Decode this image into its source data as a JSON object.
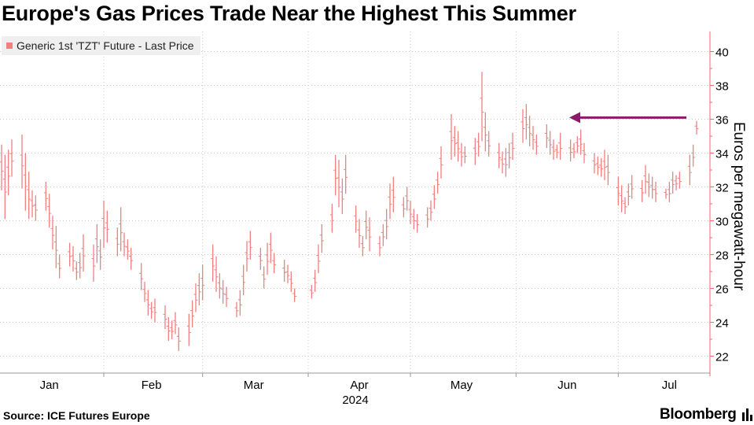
{
  "title": "Europe's Gas Prices Trade Near the Highest This Summer",
  "source": "Source: ICE Futures Europe",
  "brand": "Bloomberg",
  "colors": {
    "series": "#f08080",
    "arrow": "#8b1a6b",
    "grid": "#c8c8c8",
    "axis": "#ff6666"
  },
  "chart_data": {
    "type": "ohlc",
    "series_name": "Generic 1st 'TZT' Future - Last Price",
    "ylabel": "Euros per megawatt-hour",
    "ylim": [
      21,
      41
    ],
    "yticks": [
      22,
      24,
      26,
      28,
      30,
      32,
      34,
      36,
      38,
      40
    ],
    "month_labels": [
      "Jan",
      "Feb",
      "Mar",
      "Apr",
      "May",
      "Jun",
      "Jul"
    ],
    "year_label": "2024",
    "annotation": {
      "type": "arrow",
      "pointing": "left",
      "level": 36.1
    },
    "grid": true,
    "legend_position": "top-left",
    "bars": [
      {
        "date": "2024-01-02",
        "high": 34.5,
        "low": 31.8
      },
      {
        "date": "2024-01-03",
        "high": 33.9,
        "low": 30.1
      },
      {
        "date": "2024-01-04",
        "high": 34.2,
        "low": 31.5
      },
      {
        "date": "2024-01-05",
        "high": 34.8,
        "low": 32.6
      },
      {
        "date": "2024-01-08",
        "high": 35.1,
        "low": 31.9
      },
      {
        "date": "2024-01-09",
        "high": 34.0,
        "low": 30.6
      },
      {
        "date": "2024-01-10",
        "high": 32.9,
        "low": 30.1
      },
      {
        "date": "2024-01-11",
        "high": 31.8,
        "low": 30.2
      },
      {
        "date": "2024-01-12",
        "high": 31.5,
        "low": 30.0
      },
      {
        "date": "2024-01-15",
        "high": 32.3,
        "low": 30.6
      },
      {
        "date": "2024-01-16",
        "high": 31.6,
        "low": 29.6
      },
      {
        "date": "2024-01-17",
        "high": 30.3,
        "low": 28.3
      },
      {
        "date": "2024-01-18",
        "high": 29.7,
        "low": 27.2
      },
      {
        "date": "2024-01-19",
        "high": 28.0,
        "low": 26.6
      },
      {
        "date": "2024-01-22",
        "high": 28.7,
        "low": 27.3
      },
      {
        "date": "2024-01-23",
        "high": 28.5,
        "low": 27.0
      },
      {
        "date": "2024-01-24",
        "high": 27.6,
        "low": 26.5
      },
      {
        "date": "2024-01-25",
        "high": 28.1,
        "low": 26.6
      },
      {
        "date": "2024-01-26",
        "high": 29.2,
        "low": 27.0
      },
      {
        "date": "2024-01-29",
        "high": 28.6,
        "low": 26.4
      },
      {
        "date": "2024-01-30",
        "high": 29.8,
        "low": 27.5
      },
      {
        "date": "2024-01-31",
        "high": 28.9,
        "low": 27.1
      },
      {
        "date": "2024-02-01",
        "high": 31.2,
        "low": 28.4
      },
      {
        "date": "2024-02-02",
        "high": 30.6,
        "low": 28.7
      },
      {
        "date": "2024-02-05",
        "high": 29.6,
        "low": 27.9
      },
      {
        "date": "2024-02-06",
        "high": 30.8,
        "low": 28.2
      },
      {
        "date": "2024-02-07",
        "high": 29.3,
        "low": 27.9
      },
      {
        "date": "2024-02-08",
        "high": 28.9,
        "low": 27.7
      },
      {
        "date": "2024-02-09",
        "high": 28.4,
        "low": 27.1
      },
      {
        "date": "2024-02-12",
        "high": 27.5,
        "low": 25.9
      },
      {
        "date": "2024-02-13",
        "high": 26.4,
        "low": 25.2
      },
      {
        "date": "2024-02-14",
        "high": 25.9,
        "low": 24.4
      },
      {
        "date": "2024-02-15",
        "high": 25.2,
        "low": 24.2
      },
      {
        "date": "2024-02-16",
        "high": 25.4,
        "low": 24.0
      },
      {
        "date": "2024-02-19",
        "high": 25.0,
        "low": 23.6
      },
      {
        "date": "2024-02-20",
        "high": 24.3,
        "low": 22.9
      },
      {
        "date": "2024-02-21",
        "high": 24.1,
        "low": 23.0
      },
      {
        "date": "2024-02-22",
        "high": 24.6,
        "low": 23.3
      },
      {
        "date": "2024-02-23",
        "high": 23.7,
        "low": 22.3
      },
      {
        "date": "2024-02-26",
        "high": 24.5,
        "low": 22.6
      },
      {
        "date": "2024-02-27",
        "high": 25.3,
        "low": 23.7
      },
      {
        "date": "2024-02-28",
        "high": 26.3,
        "low": 24.6
      },
      {
        "date": "2024-02-29",
        "high": 26.9,
        "low": 25.0
      },
      {
        "date": "2024-03-01",
        "high": 27.4,
        "low": 25.3
      },
      {
        "date": "2024-03-04",
        "high": 28.6,
        "low": 26.4
      },
      {
        "date": "2024-03-05",
        "high": 27.9,
        "low": 25.8
      },
      {
        "date": "2024-03-06",
        "high": 26.9,
        "low": 25.4
      },
      {
        "date": "2024-03-07",
        "high": 26.5,
        "low": 25.1
      },
      {
        "date": "2024-03-08",
        "high": 26.1,
        "low": 24.9
      },
      {
        "date": "2024-03-11",
        "high": 25.2,
        "low": 24.3
      },
      {
        "date": "2024-03-12",
        "high": 25.9,
        "low": 24.4
      },
      {
        "date": "2024-03-13",
        "high": 27.4,
        "low": 25.6
      },
      {
        "date": "2024-03-14",
        "high": 28.8,
        "low": 27.0
      },
      {
        "date": "2024-03-15",
        "high": 29.4,
        "low": 27.7
      },
      {
        "date": "2024-03-18",
        "high": 28.4,
        "low": 27.1
      },
      {
        "date": "2024-03-19",
        "high": 27.3,
        "low": 26.0
      },
      {
        "date": "2024-03-20",
        "high": 28.7,
        "low": 26.8
      },
      {
        "date": "2024-03-21",
        "high": 29.3,
        "low": 27.5
      },
      {
        "date": "2024-03-22",
        "high": 28.1,
        "low": 26.9
      },
      {
        "date": "2024-03-25",
        "high": 27.7,
        "low": 26.4
      },
      {
        "date": "2024-03-26",
        "high": 27.4,
        "low": 26.3
      },
      {
        "date": "2024-03-27",
        "high": 27.0,
        "low": 25.8
      },
      {
        "date": "2024-03-28",
        "high": 26.0,
        "low": 25.2
      },
      {
        "date": "2024-04-02",
        "high": 26.2,
        "low": 25.4
      },
      {
        "date": "2024-04-03",
        "high": 27.1,
        "low": 25.8
      },
      {
        "date": "2024-04-04",
        "high": 28.6,
        "low": 26.9
      },
      {
        "date": "2024-04-05",
        "high": 29.8,
        "low": 28.1
      },
      {
        "date": "2024-04-08",
        "high": 31.0,
        "low": 29.3
      },
      {
        "date": "2024-04-09",
        "high": 33.9,
        "low": 31.5
      },
      {
        "date": "2024-04-10",
        "high": 33.6,
        "low": 30.8
      },
      {
        "date": "2024-04-11",
        "high": 32.5,
        "low": 30.4
      },
      {
        "date": "2024-04-12",
        "high": 33.9,
        "low": 31.6
      },
      {
        "date": "2024-04-15",
        "high": 30.9,
        "low": 29.3
      },
      {
        "date": "2024-04-16",
        "high": 30.1,
        "low": 28.4
      },
      {
        "date": "2024-04-17",
        "high": 29.1,
        "low": 27.9
      },
      {
        "date": "2024-04-18",
        "high": 30.6,
        "low": 28.9
      },
      {
        "date": "2024-04-19",
        "high": 30.2,
        "low": 28.2
      },
      {
        "date": "2024-04-22",
        "high": 29.1,
        "low": 27.9
      },
      {
        "date": "2024-04-23",
        "high": 29.8,
        "low": 28.5
      },
      {
        "date": "2024-04-24",
        "high": 30.7,
        "low": 28.9
      },
      {
        "date": "2024-04-25",
        "high": 32.2,
        "low": 30.1
      },
      {
        "date": "2024-04-26",
        "high": 32.6,
        "low": 30.5
      },
      {
        "date": "2024-04-29",
        "high": 31.4,
        "low": 30.2
      },
      {
        "date": "2024-04-30",
        "high": 32.0,
        "low": 30.6
      },
      {
        "date": "2024-05-01",
        "high": 31.2,
        "low": 29.8
      },
      {
        "date": "2024-05-02",
        "high": 30.7,
        "low": 29.5
      },
      {
        "date": "2024-05-03",
        "high": 30.4,
        "low": 29.3
      },
      {
        "date": "2024-05-06",
        "high": 30.8,
        "low": 29.6
      },
      {
        "date": "2024-05-07",
        "high": 31.2,
        "low": 30.0
      },
      {
        "date": "2024-05-08",
        "high": 32.1,
        "low": 30.7
      },
      {
        "date": "2024-05-09",
        "high": 32.9,
        "low": 31.6
      },
      {
        "date": "2024-05-10",
        "high": 34.4,
        "low": 32.5
      },
      {
        "date": "2024-05-13",
        "high": 36.3,
        "low": 33.6
      },
      {
        "date": "2024-05-14",
        "high": 35.6,
        "low": 33.8
      },
      {
        "date": "2024-05-15",
        "high": 35.3,
        "low": 33.5
      },
      {
        "date": "2024-05-16",
        "high": 34.6,
        "low": 33.2
      },
      {
        "date": "2024-05-17",
        "high": 34.4,
        "low": 33.4
      },
      {
        "date": "2024-05-20",
        "high": 34.9,
        "low": 33.3
      },
      {
        "date": "2024-05-21",
        "high": 35.2,
        "low": 33.8
      },
      {
        "date": "2024-05-22",
        "high": 38.8,
        "low": 34.7
      },
      {
        "date": "2024-05-23",
        "high": 36.4,
        "low": 34.1
      },
      {
        "date": "2024-05-24",
        "high": 35.3,
        "low": 33.8
      },
      {
        "date": "2024-05-27",
        "high": 34.6,
        "low": 33.1
      },
      {
        "date": "2024-05-28",
        "high": 34.1,
        "low": 32.8
      },
      {
        "date": "2024-05-29",
        "high": 34.3,
        "low": 32.6
      },
      {
        "date": "2024-05-30",
        "high": 34.6,
        "low": 33.1
      },
      {
        "date": "2024-05-31",
        "high": 35.2,
        "low": 33.6
      },
      {
        "date": "2024-06-03",
        "high": 36.6,
        "low": 34.6
      },
      {
        "date": "2024-06-04",
        "high": 36.9,
        "low": 34.8
      },
      {
        "date": "2024-06-05",
        "high": 36.2,
        "low": 34.4
      },
      {
        "date": "2024-06-06",
        "high": 35.6,
        "low": 34.2
      },
      {
        "date": "2024-06-07",
        "high": 35.1,
        "low": 33.9
      },
      {
        "date": "2024-06-10",
        "high": 35.7,
        "low": 34.3
      },
      {
        "date": "2024-06-11",
        "high": 35.3,
        "low": 33.9
      },
      {
        "date": "2024-06-12",
        "high": 34.8,
        "low": 33.6
      },
      {
        "date": "2024-06-13",
        "high": 34.5,
        "low": 33.7
      },
      {
        "date": "2024-06-14",
        "high": 35.2,
        "low": 33.6
      },
      {
        "date": "2024-06-17",
        "high": 34.8,
        "low": 33.5
      },
      {
        "date": "2024-06-18",
        "high": 34.6,
        "low": 33.7
      },
      {
        "date": "2024-06-19",
        "high": 35.0,
        "low": 34.0
      },
      {
        "date": "2024-06-20",
        "high": 35.4,
        "low": 33.9
      },
      {
        "date": "2024-06-21",
        "high": 34.6,
        "low": 33.4
      },
      {
        "date": "2024-06-24",
        "high": 34.0,
        "low": 32.8
      },
      {
        "date": "2024-06-25",
        "high": 33.8,
        "low": 32.7
      },
      {
        "date": "2024-06-26",
        "high": 33.7,
        "low": 32.6
      },
      {
        "date": "2024-06-27",
        "high": 34.2,
        "low": 32.4
      },
      {
        "date": "2024-06-28",
        "high": 33.9,
        "low": 32.1
      },
      {
        "date": "2024-07-01",
        "high": 32.6,
        "low": 30.9
      },
      {
        "date": "2024-07-02",
        "high": 32.1,
        "low": 30.5
      },
      {
        "date": "2024-07-03",
        "high": 31.4,
        "low": 30.4
      },
      {
        "date": "2024-07-04",
        "high": 32.2,
        "low": 30.9
      },
      {
        "date": "2024-07-05",
        "high": 32.7,
        "low": 31.3
      },
      {
        "date": "2024-07-08",
        "high": 32.4,
        "low": 31.1
      },
      {
        "date": "2024-07-09",
        "high": 33.3,
        "low": 31.6
      },
      {
        "date": "2024-07-10",
        "high": 32.8,
        "low": 31.4
      },
      {
        "date": "2024-07-11",
        "high": 32.6,
        "low": 31.3
      },
      {
        "date": "2024-07-12",
        "high": 32.3,
        "low": 31.1
      },
      {
        "date": "2024-07-15",
        "high": 31.9,
        "low": 31.3
      },
      {
        "date": "2024-07-16",
        "high": 32.3,
        "low": 31.1
      },
      {
        "date": "2024-07-17",
        "high": 32.9,
        "low": 31.6
      },
      {
        "date": "2024-07-18",
        "high": 32.7,
        "low": 31.8
      },
      {
        "date": "2024-07-19",
        "high": 32.9,
        "low": 31.9
      },
      {
        "date": "2024-07-22",
        "high": 33.9,
        "low": 32.1
      },
      {
        "date": "2024-07-23",
        "high": 34.5,
        "low": 33.2
      },
      {
        "date": "2024-07-24",
        "high": 35.9,
        "low": 35.1
      }
    ]
  }
}
